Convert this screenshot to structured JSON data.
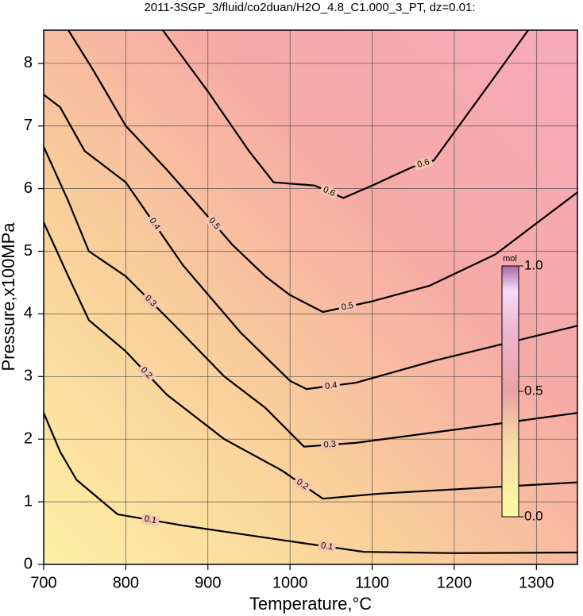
{
  "chart_data": {
    "type": "contour",
    "title": "2011-3SGP_3/fluid/co2duan/H2O_4.8_C1.000_3_PT, dz=0.01:",
    "xlabel": "Temperature,°C",
    "ylabel": "Pressure,x100MPa",
    "xlim": [
      700,
      1350
    ],
    "ylim": [
      0,
      8.53
    ],
    "xticks": [
      700,
      800,
      900,
      1000,
      1100,
      1200,
      1300
    ],
    "yticks": [
      0,
      1,
      2,
      3,
      4,
      5,
      6,
      7,
      8
    ],
    "grid": true,
    "contours": [
      {
        "level": 0.1,
        "x": [
          700,
          720,
          740,
          790,
          870,
          1000,
          1090,
          1200,
          1350
        ],
        "y": [
          2.42,
          1.8,
          1.35,
          0.8,
          0.62,
          0.37,
          0.2,
          0.18,
          0.19
        ]
      },
      {
        "level": 0.2,
        "x": [
          700,
          730,
          755,
          800,
          850,
          920,
          990,
          1040,
          1110,
          1350
        ],
        "y": [
          5.46,
          4.6,
          3.9,
          3.4,
          2.71,
          2.0,
          1.5,
          1.05,
          1.13,
          1.31
        ]
      },
      {
        "level": 0.3,
        "x": [
          700,
          730,
          755,
          800,
          860,
          920,
          970,
          1017,
          1080,
          1200,
          1350
        ],
        "y": [
          6.67,
          5.8,
          5.0,
          4.6,
          3.81,
          3.0,
          2.5,
          1.88,
          1.94,
          2.15,
          2.42
        ]
      },
      {
        "level": 0.4,
        "x": [
          700,
          720,
          750,
          800,
          870,
          940,
          1000,
          1020,
          1080,
          1175,
          1350
        ],
        "y": [
          7.5,
          7.3,
          6.6,
          6.1,
          4.77,
          3.7,
          2.93,
          2.8,
          2.9,
          3.25,
          3.81
        ]
      },
      {
        "level": 0.5,
        "x": [
          730,
          760,
          800,
          850,
          885,
          930,
          970,
          1000,
          1040,
          1100,
          1170,
          1250,
          1350
        ],
        "y": [
          8.53,
          7.9,
          7.0,
          6.3,
          5.78,
          5.1,
          4.6,
          4.3,
          4.03,
          4.2,
          4.45,
          4.95,
          5.94
        ]
      },
      {
        "level": 0.6,
        "x": [
          845,
          900,
          950,
          980,
          1030,
          1065,
          1100,
          1150,
          1175,
          1200,
          1250,
          1290
        ],
        "y": [
          8.53,
          7.55,
          6.6,
          6.1,
          6.05,
          5.85,
          6.05,
          6.35,
          6.45,
          6.9,
          7.8,
          8.53
        ]
      }
    ],
    "colorbar": {
      "label": "mol",
      "lim": [
        0,
        1
      ],
      "ticks": [
        {
          "value": 0,
          "label": "0.0"
        },
        0.5,
        {
          "value": 1,
          "label": "1.0"
        }
      ]
    }
  }
}
